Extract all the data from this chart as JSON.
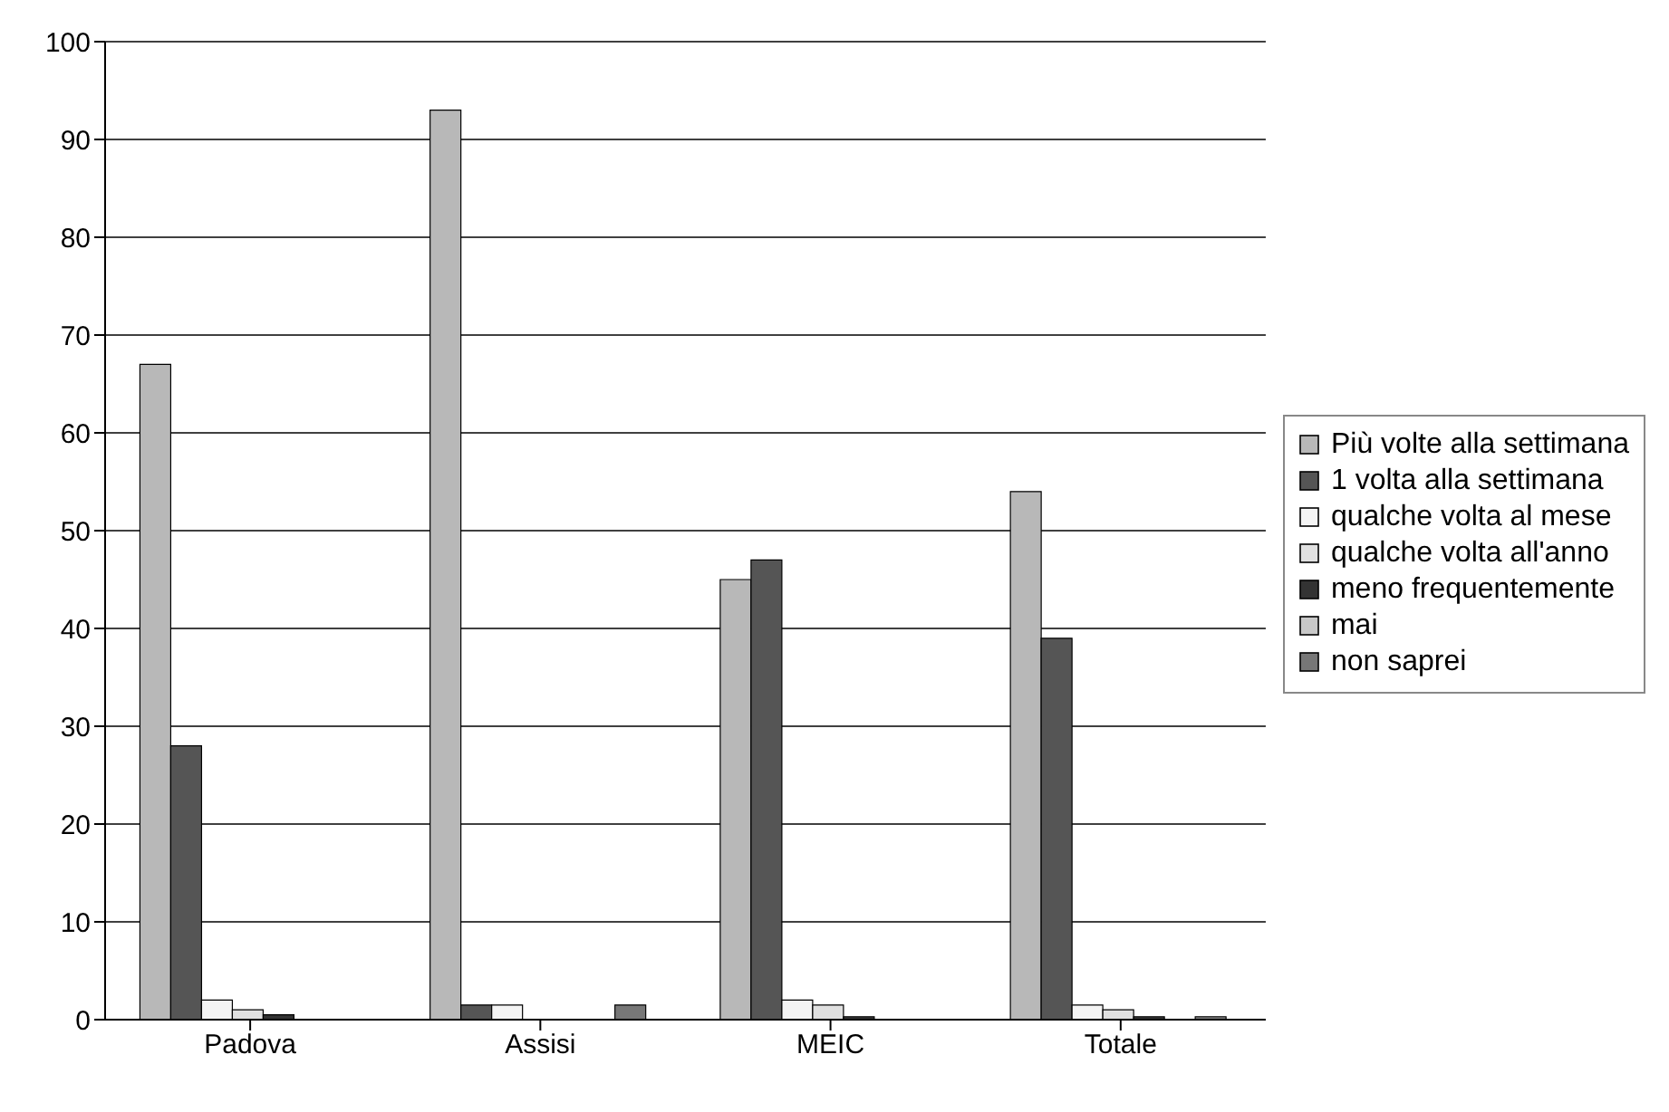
{
  "chart_data": {
    "type": "bar",
    "categories": [
      "Padova",
      "Assisi",
      "MEIC",
      "Totale"
    ],
    "series": [
      {
        "name": "Più volte alla settimana",
        "color": "#b8b8b8",
        "values": [
          67,
          93,
          45,
          54
        ]
      },
      {
        "name": "1 volta alla settimana",
        "color": "#555555",
        "values": [
          28,
          1.5,
          47,
          39
        ]
      },
      {
        "name": "qualche volta al mese",
        "color": "#f4f4f4",
        "values": [
          2,
          1.5,
          2,
          1.5
        ]
      },
      {
        "name": "qualche volta all'anno",
        "color": "#e0e0e0",
        "values": [
          1,
          0,
          1.5,
          1
        ]
      },
      {
        "name": "meno frequentemente",
        "color": "#333333",
        "values": [
          0.5,
          0,
          0.3,
          0.3
        ]
      },
      {
        "name": "mai",
        "color": "#c8c8c8",
        "values": [
          0,
          0,
          0,
          0
        ]
      },
      {
        "name": "non saprei",
        "color": "#777777",
        "values": [
          0,
          1.5,
          0,
          0.3
        ]
      }
    ],
    "ylim": [
      0,
      100
    ],
    "yticks": [
      0,
      10,
      20,
      30,
      40,
      50,
      60,
      70,
      80,
      90,
      100
    ],
    "grid": "y",
    "legend": "right"
  }
}
